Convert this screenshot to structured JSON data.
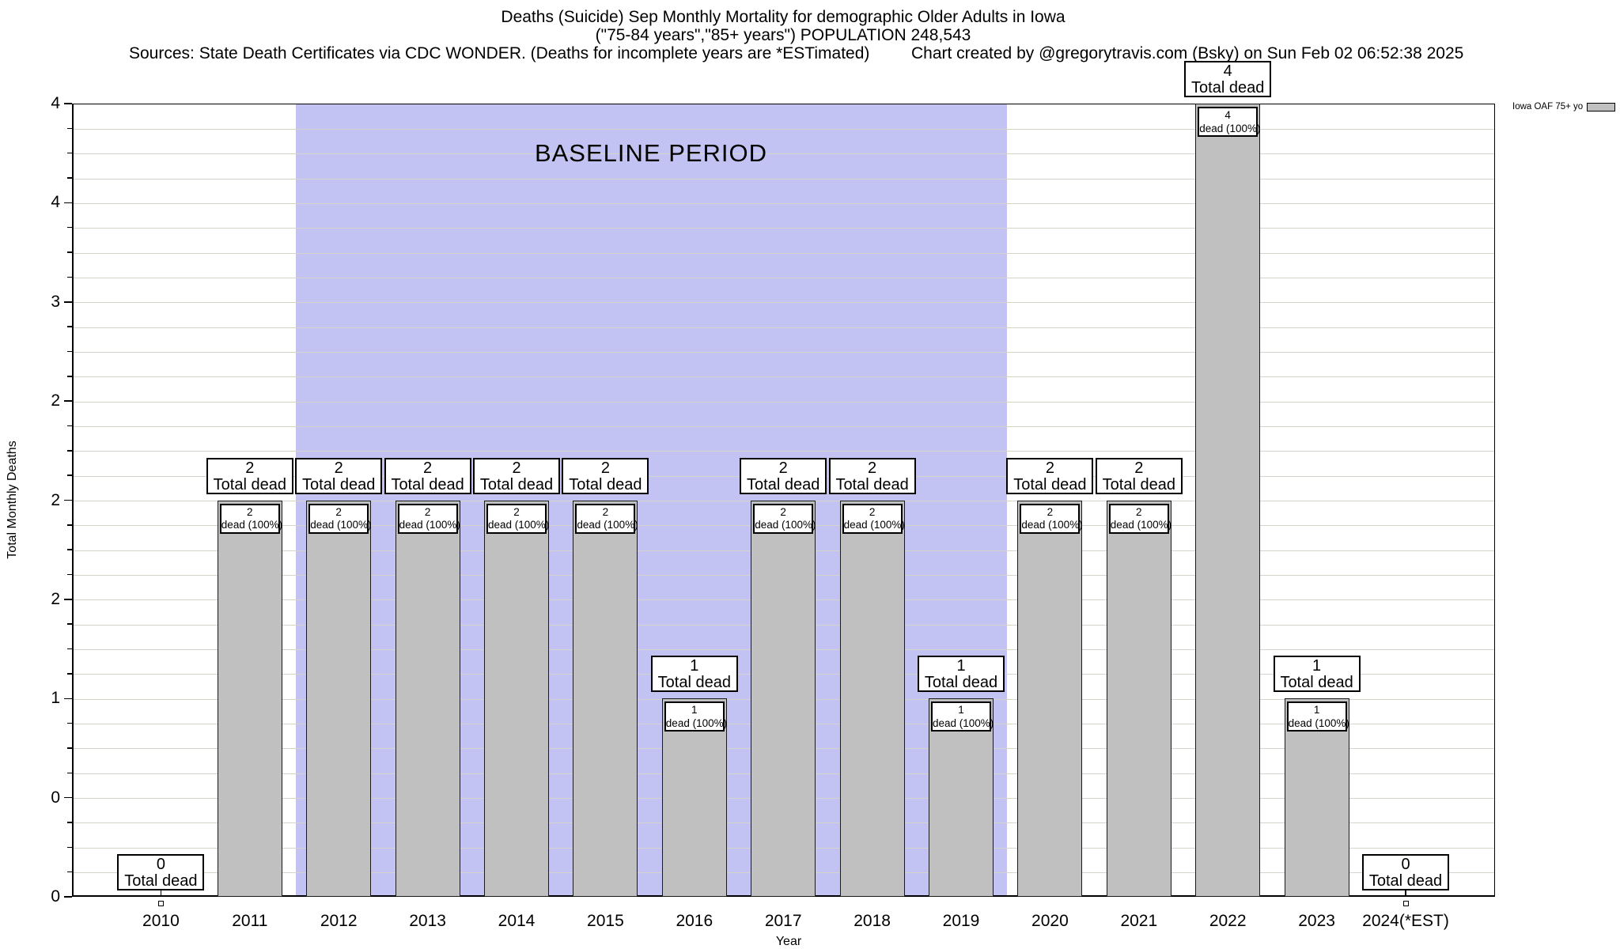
{
  "header": {
    "title_line1": "Deaths (Suicide) Sep Monthly Mortality for demographic Older Adults in Iowa",
    "title_line2": "(\"75-84 years\",\"85+ years\") POPULATION 248,543",
    "sources": "Sources: State Death Certificates via CDC WONDER. (Deaths for incomplete years are *ESTimated)",
    "credit": "Chart created by @gregorytravis.com (Bsky) on Sun Feb 02 06:52:38 2025"
  },
  "legend": {
    "label": "Iowa OAF 75+ yo",
    "swatch_color": "#c0c0c0"
  },
  "colors": {
    "bar_fill": "#c0c0c0",
    "bar_border": "#1a1a1a",
    "baseline_fill": "#c3c3f3",
    "gridline": "#d4d4ca",
    "plot_border": "#000000"
  },
  "chart_data": {
    "type": "bar",
    "title": "Deaths (Suicide) Sep Monthly Mortality for demographic Older Adults in Iowa",
    "subtitle": "(\"75-84 years\",\"85+ years\") POPULATION 248,543",
    "series_name": "Iowa OAF 75+ yo",
    "categories": [
      "2010",
      "2011",
      "2012",
      "2013",
      "2014",
      "2015",
      "2016",
      "2017",
      "2018",
      "2019",
      "2020",
      "2021",
      "2022",
      "2023",
      "2024(*EST)"
    ],
    "values": [
      0,
      2,
      2,
      2,
      2,
      2,
      1,
      2,
      2,
      1,
      2,
      2,
      4,
      1,
      0
    ],
    "xlabel": "Year",
    "ylabel": "Total Monthly Deaths",
    "ylim": [
      0,
      4
    ],
    "y_tick_values": [
      0,
      0.5,
      1,
      1.5,
      2,
      2.5,
      3,
      3.5,
      4
    ],
    "y_tick_labels_bottom_to_top": [
      "0",
      "0",
      "1",
      "2",
      "2",
      "2",
      "3",
      "4",
      "4"
    ],
    "grid": true,
    "legend_position": "top-right-outside",
    "baseline_period": {
      "label": "BASELINE PERIOD",
      "from": "2012",
      "to": "2019"
    },
    "bar_label_top_suffix": "Total dead",
    "bar_label_inner_suffix": "dead (100%)"
  }
}
